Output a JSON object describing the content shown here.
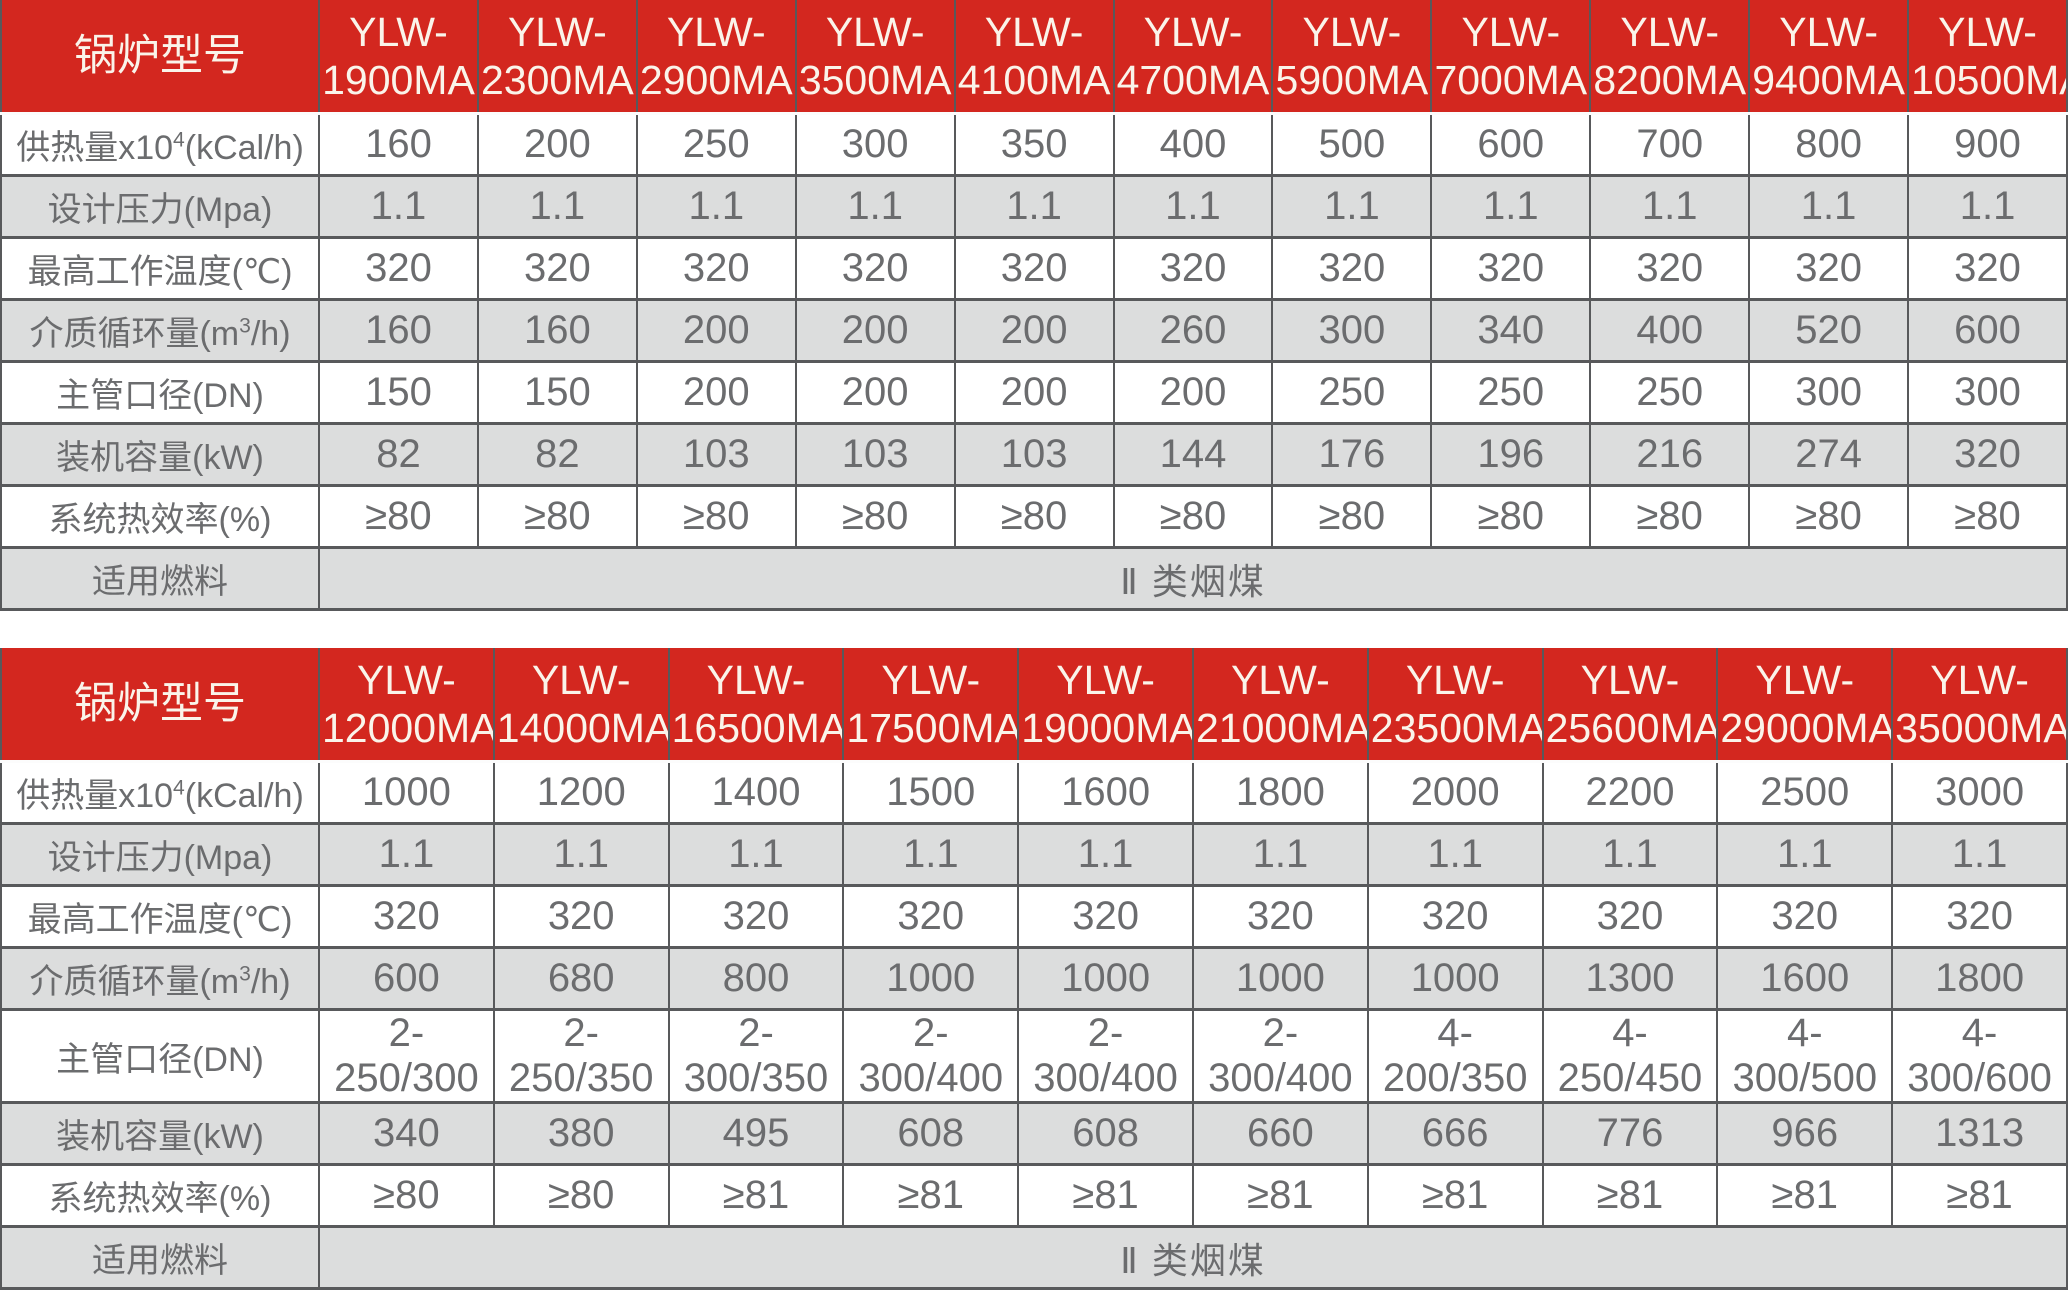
{
  "colors": {
    "header_bg": "#d3271f",
    "header_text": "#faf4ea",
    "alt_row_bg": "#dcdddd",
    "row_bg": "#ffffff",
    "border": "#58595b",
    "text": "#6b6c6e"
  },
  "tables": [
    {
      "corner_label": "锅炉型号",
      "models": [
        {
          "line1": "YLW-",
          "line2": "1900MA"
        },
        {
          "line1": "YLW-",
          "line2": "2300MA"
        },
        {
          "line1": "YLW-",
          "line2": "2900MA"
        },
        {
          "line1": "YLW-",
          "line2": "3500MA"
        },
        {
          "line1": "YLW-",
          "line2": "4100MA"
        },
        {
          "line1": "YLW-",
          "line2": "4700MA"
        },
        {
          "line1": "YLW-",
          "line2": "5900MA"
        },
        {
          "line1": "YLW-",
          "line2": "7000MA"
        },
        {
          "line1": "YLW-",
          "line2": "8200MA"
        },
        {
          "line1": "YLW-",
          "line2": "9400MA"
        },
        {
          "line1": "YLW-",
          "line2": "10500MA"
        }
      ],
      "rows": [
        {
          "label_pre": "供热量x10",
          "label_sup": "4",
          "label_post": "(kCal/h)",
          "values": [
            "160",
            "200",
            "250",
            "300",
            "350",
            "400",
            "500",
            "600",
            "700",
            "800",
            "900"
          ]
        },
        {
          "label_pre": "设计压力(Mpa)",
          "label_sup": "",
          "label_post": "",
          "values": [
            "1.1",
            "1.1",
            "1.1",
            "1.1",
            "1.1",
            "1.1",
            "1.1",
            "1.1",
            "1.1",
            "1.1",
            "1.1"
          ]
        },
        {
          "label_pre": "最高工作温度(℃)",
          "label_sup": "",
          "label_post": "",
          "values": [
            "320",
            "320",
            "320",
            "320",
            "320",
            "320",
            "320",
            "320",
            "320",
            "320",
            "320"
          ]
        },
        {
          "label_pre": "介质循环量(m",
          "label_sup": "3",
          "label_post": "/h)",
          "values": [
            "160",
            "160",
            "200",
            "200",
            "200",
            "260",
            "300",
            "340",
            "400",
            "520",
            "600"
          ]
        },
        {
          "label_pre": "主管口径(DN)",
          "label_sup": "",
          "label_post": "",
          "values": [
            "150",
            "150",
            "200",
            "200",
            "200",
            "200",
            "250",
            "250",
            "250",
            "300",
            "300"
          ]
        },
        {
          "label_pre": "装机容量(kW)",
          "label_sup": "",
          "label_post": "",
          "values": [
            "82",
            "82",
            "103",
            "103",
            "103",
            "144",
            "176",
            "196",
            "216",
            "274",
            "320"
          ]
        },
        {
          "label_pre": "系统热效率(%)",
          "label_sup": "",
          "label_post": "",
          "values": [
            "≥80",
            "≥80",
            "≥80",
            "≥80",
            "≥80",
            "≥80",
            "≥80",
            "≥80",
            "≥80",
            "≥80",
            "≥80"
          ]
        }
      ],
      "fuel_label": "适用燃料",
      "fuel_value": "Ⅱ 类烟煤"
    },
    {
      "corner_label": "锅炉型号",
      "models": [
        {
          "line1": "YLW-",
          "line2": "12000MA"
        },
        {
          "line1": "YLW-",
          "line2": "14000MA"
        },
        {
          "line1": "YLW-",
          "line2": "16500MA"
        },
        {
          "line1": "YLW-",
          "line2": "17500MA"
        },
        {
          "line1": "YLW-",
          "line2": "19000MA"
        },
        {
          "line1": "YLW-",
          "line2": "21000MA"
        },
        {
          "line1": "YLW-",
          "line2": "23500MA"
        },
        {
          "line1": "YLW-",
          "line2": "25600MA"
        },
        {
          "line1": "YLW-",
          "line2": "29000MA"
        },
        {
          "line1": "YLW-",
          "line2": "35000MA"
        }
      ],
      "rows": [
        {
          "label_pre": "供热量x10",
          "label_sup": "4",
          "label_post": "(kCal/h)",
          "values": [
            "1000",
            "1200",
            "1400",
            "1500",
            "1600",
            "1800",
            "2000",
            "2200",
            "2500",
            "3000"
          ]
        },
        {
          "label_pre": "设计压力(Mpa)",
          "label_sup": "",
          "label_post": "",
          "values": [
            "1.1",
            "1.1",
            "1.1",
            "1.1",
            "1.1",
            "1.1",
            "1.1",
            "1.1",
            "1.1",
            "1.1"
          ]
        },
        {
          "label_pre": "最高工作温度(℃)",
          "label_sup": "",
          "label_post": "",
          "values": [
            "320",
            "320",
            "320",
            "320",
            "320",
            "320",
            "320",
            "320",
            "320",
            "320"
          ]
        },
        {
          "label_pre": "介质循环量(m",
          "label_sup": "3",
          "label_post": "/h)",
          "values": [
            "600",
            "680",
            "800",
            "1000",
            "1000",
            "1000",
            "1000",
            "1300",
            "1600",
            "1800"
          ]
        },
        {
          "label_pre": "主管口径(DN)",
          "label_sup": "",
          "label_post": "",
          "values": [
            "2-250/300",
            "2-250/350",
            "2-300/350",
            "2-300/400",
            "2-300/400",
            "2-300/400",
            "4-200/350",
            "4-250/450",
            "4-300/500",
            "4-300/600"
          ]
        },
        {
          "label_pre": "装机容量(kW)",
          "label_sup": "",
          "label_post": "",
          "values": [
            "340",
            "380",
            "495",
            "608",
            "608",
            "660",
            "666",
            "776",
            "966",
            "1313"
          ]
        },
        {
          "label_pre": "系统热效率(%)",
          "label_sup": "",
          "label_post": "",
          "values": [
            "≥80",
            "≥80",
            "≥81",
            "≥81",
            "≥81",
            "≥81",
            "≥81",
            "≥81",
            "≥81",
            "≥81"
          ]
        }
      ],
      "fuel_label": "适用燃料",
      "fuel_value": "Ⅱ 类烟煤"
    }
  ]
}
